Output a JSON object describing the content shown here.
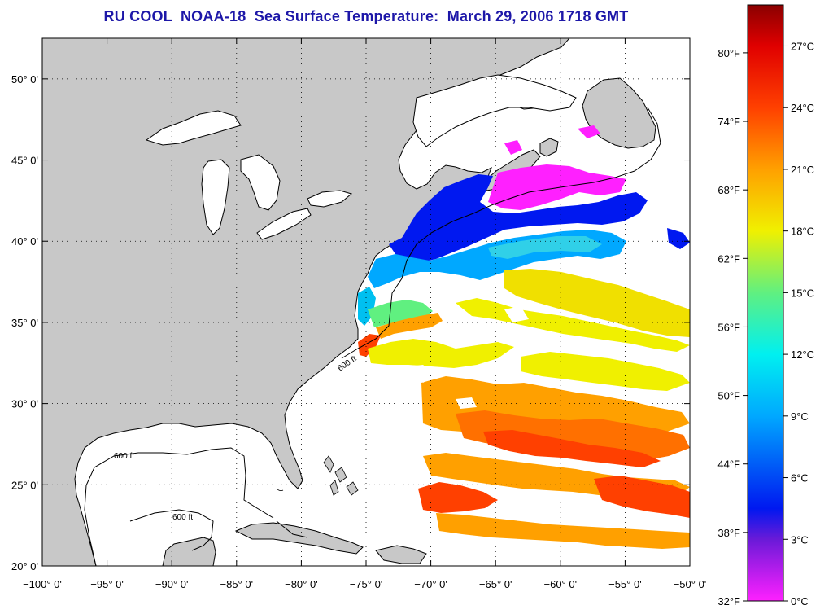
{
  "title": "RU COOL  NOAA-18  Sea Surface Temperature:  March 29, 2006 1718 GMT",
  "map": {
    "lon_range": [
      -100,
      -50
    ],
    "lat_range": [
      20,
      52.5
    ],
    "lon_ticks": [
      {
        "value": -100,
        "label": "−100° 0'"
      },
      {
        "value": -95,
        "label": "−95° 0'"
      },
      {
        "value": -90,
        "label": "−90° 0'"
      },
      {
        "value": -85,
        "label": "−85° 0'"
      },
      {
        "value": -80,
        "label": "−80° 0'"
      },
      {
        "value": -75,
        "label": "−75° 0'"
      },
      {
        "value": -70,
        "label": "−70° 0'"
      },
      {
        "value": -65,
        "label": "−65° 0'"
      },
      {
        "value": -60,
        "label": "−60° 0'"
      },
      {
        "value": -55,
        "label": "−55° 0'"
      },
      {
        "value": -50,
        "label": "−50° 0'"
      }
    ],
    "lat_ticks": [
      {
        "value": 20,
        "label": "20° 0'"
      },
      {
        "value": 25,
        "label": "25° 0'"
      },
      {
        "value": 30,
        "label": "30° 0'"
      },
      {
        "value": 35,
        "label": "35° 0'"
      },
      {
        "value": 40,
        "label": "40° 0'"
      },
      {
        "value": 45,
        "label": "45° 0'"
      },
      {
        "value": 50,
        "label": "50° 0'"
      }
    ],
    "isobath_label": "600 ft",
    "land_color": "#c8c8c8",
    "ocean_color": "#ffffff",
    "grid": "dotted"
  },
  "colorbar": {
    "celsius_range": [
      0,
      29
    ],
    "celsius_ticks": [
      {
        "value": 0,
        "label": "0°C"
      },
      {
        "value": 3,
        "label": "3°C"
      },
      {
        "value": 6,
        "label": "6°C"
      },
      {
        "value": 9,
        "label": "9°C"
      },
      {
        "value": 12,
        "label": "12°C"
      },
      {
        "value": 15,
        "label": "15°C"
      },
      {
        "value": 18,
        "label": "18°C"
      },
      {
        "value": 21,
        "label": "21°C"
      },
      {
        "value": 24,
        "label": "24°C"
      },
      {
        "value": 27,
        "label": "27°C"
      }
    ],
    "fahrenheit_ticks": [
      {
        "value": 32,
        "label": "32°F"
      },
      {
        "value": 38,
        "label": "38°F"
      },
      {
        "value": 44,
        "label": "44°F"
      },
      {
        "value": 50,
        "label": "50°F"
      },
      {
        "value": 56,
        "label": "56°F"
      },
      {
        "value": 62,
        "label": "62°F"
      },
      {
        "value": 68,
        "label": "68°F"
      },
      {
        "value": 74,
        "label": "74°F"
      },
      {
        "value": 80,
        "label": "80°F"
      }
    ],
    "color_stops": [
      {
        "c": 0,
        "color": "#ff20ff"
      },
      {
        "c": 3,
        "color": "#6a1ad8"
      },
      {
        "c": 4.5,
        "color": "#0018f0"
      },
      {
        "c": 9,
        "color": "#00a8ff"
      },
      {
        "c": 12,
        "color": "#00f0f0"
      },
      {
        "c": 15,
        "color": "#60f080"
      },
      {
        "c": 18,
        "color": "#f0f000"
      },
      {
        "c": 21,
        "color": "#ffa000"
      },
      {
        "c": 24,
        "color": "#ff4000"
      },
      {
        "c": 27,
        "color": "#e00000"
      },
      {
        "c": 29,
        "color": "#8a0000"
      }
    ]
  }
}
